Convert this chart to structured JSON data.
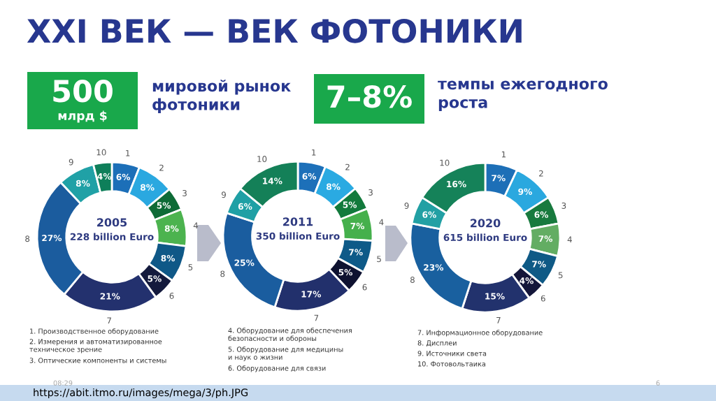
{
  "chart_data": [
    {
      "type": "other",
      "title": "XXI ВЕК — ВЕК ФОТОНИКИ",
      "annotations": [
        "500",
        "млрд $",
        "мировой рынок\nфотоники",
        "7–8%",
        "темпы ежегодного\nроста",
        "08:29",
        "6",
        "https://abit.itmo.ru/images/mega/3/ph.JPG"
      ]
    },
    {
      "type": "donut",
      "title": "2005",
      "subtitle": "228 billion Euro",
      "categories": [
        "1",
        "2",
        "3",
        "4",
        "5",
        "6",
        "7",
        "8",
        "9",
        "10"
      ],
      "values": [
        6,
        8,
        5,
        8,
        8,
        5,
        21,
        27,
        8,
        4
      ],
      "value_labels": [
        "6%",
        "8%",
        "5%",
        "8%",
        "8%",
        "5%",
        "21%",
        "27%",
        "8%",
        "4%"
      ],
      "colors": [
        "#1c6fb8",
        "#2aa8e0",
        "#0e6b36",
        "#4cb34f",
        "#0f5887",
        "#141a3d",
        "#23316e",
        "#1b5c9e",
        "#20a1a6",
        "#0e7f5a"
      ],
      "annotations": [
        "1. Производственное оборудование",
        "2. Измерения и автоматизированное\nтехническое зрение",
        "3. Оптические компоненты и системы"
      ]
    },
    {
      "type": "donut",
      "title": "2011",
      "subtitle": "350 billion Euro",
      "categories": [
        "1",
        "2",
        "3",
        "4",
        "5",
        "6",
        "7",
        "8",
        "9",
        "10"
      ],
      "values": [
        6,
        8,
        5,
        7,
        7,
        5,
        17,
        25,
        6,
        14
      ],
      "value_labels": [
        "6%",
        "8%",
        "5%",
        "7%",
        "7%",
        "5%",
        "17%",
        "25%",
        "6%",
        "14%"
      ],
      "colors": [
        "#1d70b9",
        "#2aaae2",
        "#127a3c",
        "#45b04c",
        "#0e5a88",
        "#0e1230",
        "#22306c",
        "#1a5d9f",
        "#1fa0a5",
        "#148058"
      ],
      "annotations": [
        "4. Оборудование для обеспечения\nбезопасности и обороны",
        "5. Оборудование для медицины\nи наук о жизни",
        "6. Оборудование для связи"
      ]
    },
    {
      "type": "donut",
      "title": "2020",
      "subtitle": "615 billion Euro",
      "categories": [
        "1",
        "2",
        "3",
        "4",
        "5",
        "6",
        "7",
        "8",
        "9",
        "10"
      ],
      "values": [
        7,
        9,
        6,
        7,
        7,
        4,
        15,
        23,
        6,
        16
      ],
      "value_labels": [
        "7%",
        "9%",
        "6%",
        "7%",
        "7%",
        "4%",
        "15%",
        "23%",
        "6%",
        "16%"
      ],
      "colors": [
        "#1d6fb7",
        "#2aa8df",
        "#187a3e",
        "#63ad63",
        "#0f5a86",
        "#14163a",
        "#22326d",
        "#19609f",
        "#22a0a4",
        "#158259"
      ],
      "annotations": [
        "7. Информационное оборудование",
        "8. Дисплеи",
        "9. Источники света",
        "10. Фотовольтаика"
      ]
    }
  ]
}
